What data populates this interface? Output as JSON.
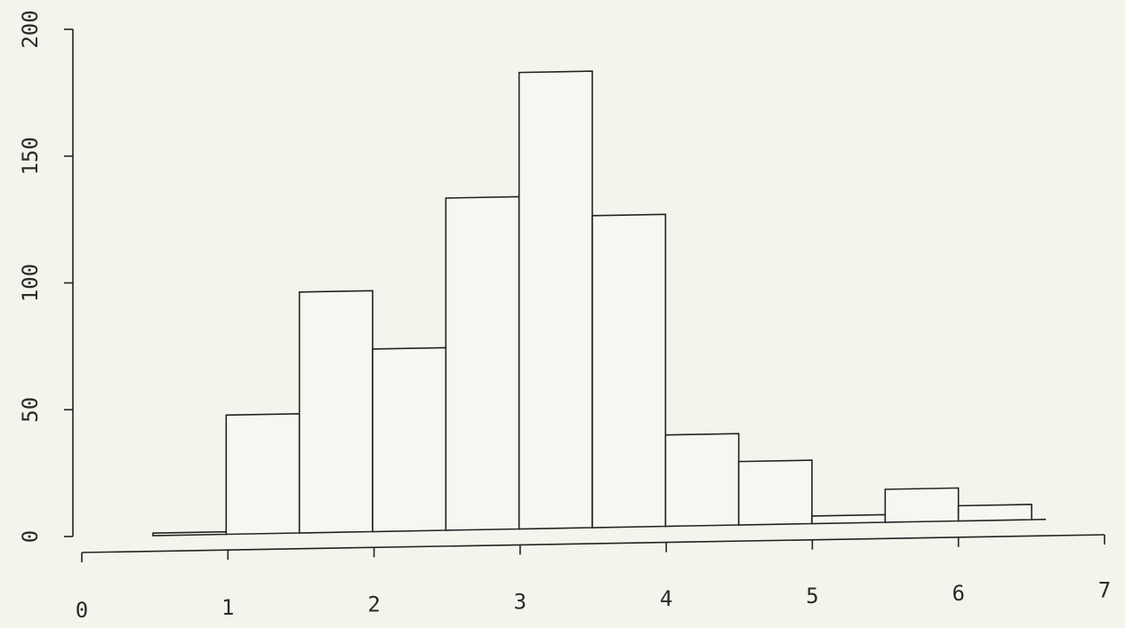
{
  "chart_data": {
    "type": "bar",
    "title": "",
    "xlabel": "",
    "ylabel": "",
    "xlim": [
      0,
      7
    ],
    "ylim": [
      0,
      200
    ],
    "bin_width": 0.5,
    "x_ticks": [
      "0",
      "1",
      "2",
      "3",
      "4",
      "5",
      "6",
      "7"
    ],
    "y_ticks": [
      "0",
      "50",
      "100",
      "150",
      "200"
    ],
    "bins": [
      {
        "x0": 0.5,
        "x1": 1.0,
        "value": 1
      },
      {
        "x0": 1.0,
        "x1": 1.5,
        "value": 47
      },
      {
        "x0": 1.5,
        "x1": 2.0,
        "value": 95
      },
      {
        "x0": 2.0,
        "x1": 2.5,
        "value": 72
      },
      {
        "x0": 2.5,
        "x1": 3.0,
        "value": 131
      },
      {
        "x0": 3.0,
        "x1": 3.5,
        "value": 180
      },
      {
        "x0": 3.5,
        "x1": 4.0,
        "value": 123
      },
      {
        "x0": 4.0,
        "x1": 4.5,
        "value": 36
      },
      {
        "x0": 4.5,
        "x1": 5.0,
        "value": 25
      },
      {
        "x0": 5.0,
        "x1": 5.5,
        "value": 3
      },
      {
        "x0": 5.5,
        "x1": 6.0,
        "value": 13
      },
      {
        "x0": 6.0,
        "x1": 6.5,
        "value": 6
      }
    ],
    "grid": false
  }
}
